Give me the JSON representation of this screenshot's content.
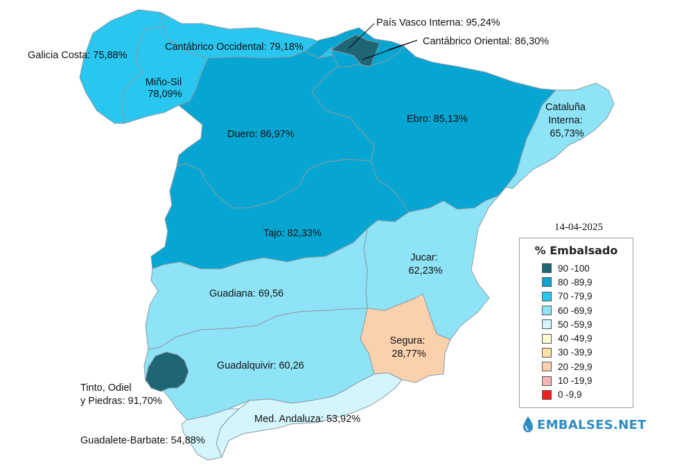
{
  "map": {
    "date": "14-04-2025",
    "basins": [
      {
        "key": "galicia",
        "label": "Galicia Costa: 75,88%",
        "value": 75.88,
        "color": "#29c6ef"
      },
      {
        "key": "cantabrico_occ",
        "label": "Cantábrico Occidental: 79,18%",
        "value": 79.18,
        "color": "#29c6ef"
      },
      {
        "key": "pais_vasco",
        "label": "País Vasco Interna: 95,24%",
        "value": 95.24,
        "color": "#1e6575"
      },
      {
        "key": "cantabrico_or",
        "label": "Cantábrico Oriental: 86,30%",
        "value": 86.3,
        "color": "#07a6d2"
      },
      {
        "key": "mino_sil",
        "label_lines": [
          "Miño-Sil",
          "78,09%"
        ],
        "value": 78.09,
        "color": "#29c6ef"
      },
      {
        "key": "duero",
        "label": "Duero: 86,97%",
        "value": 86.97,
        "color": "#07a6d2"
      },
      {
        "key": "ebro",
        "label": "Ebro: 85,13%",
        "value": 85.13,
        "color": "#07a6d2"
      },
      {
        "key": "cataluna",
        "label_lines": [
          "Cataluña",
          "Interna:",
          "65,73%"
        ],
        "value": 65.73,
        "color": "#8ee3f7"
      },
      {
        "key": "tajo",
        "label": "Tajo: 82,33%",
        "value": 82.33,
        "color": "#07a6d2"
      },
      {
        "key": "jucar",
        "label_lines": [
          "Jucar:",
          "62,23%"
        ],
        "value": 62.23,
        "color": "#8ee3f7"
      },
      {
        "key": "guadiana",
        "label": "Guadiana: 69,56",
        "value": 69.56,
        "color": "#8ee3f7"
      },
      {
        "key": "segura",
        "label_lines": [
          "Segura:",
          "28,77%"
        ],
        "value": 28.77,
        "color": "#fbd0ac"
      },
      {
        "key": "guadalquivir",
        "label": "Guadalquivir: 60,26",
        "value": 60.26,
        "color": "#8ee3f7"
      },
      {
        "key": "tinto",
        "label_lines": [
          "Tinto, Odiel",
          "y Piedras: 91,70%"
        ],
        "value": 91.7,
        "color": "#1e6575"
      },
      {
        "key": "med_andaluza",
        "label": "Med. Andaluza: 53,92%",
        "value": 53.92,
        "color": "#d4f5fc"
      },
      {
        "key": "guadalete",
        "label": "Guadalete-Barbate: 54,88%",
        "value": 54.88,
        "color": "#d4f5fc"
      }
    ]
  },
  "legend": {
    "title": "% Embalsado",
    "items": [
      {
        "label": "90 -100",
        "color": "#1e6575"
      },
      {
        "label": "80 -89,9",
        "color": "#07a6d2"
      },
      {
        "label": "70 -79,9",
        "color": "#29c6ef"
      },
      {
        "label": "60 -69,9",
        "color": "#8ee3f7"
      },
      {
        "label": "50 -59,9",
        "color": "#d4f5fc"
      },
      {
        "label": "40 -49,9",
        "color": "#fdfccf"
      },
      {
        "label": "30 -39,9",
        "color": "#fbe1a5"
      },
      {
        "label": "20 -29,9",
        "color": "#fbd0ac"
      },
      {
        "label": "10 -19,9",
        "color": "#f8b4b4"
      },
      {
        "label": "0 -9,9",
        "color": "#f21f1f"
      }
    ]
  },
  "brand": {
    "name": "EMBALSES.NET",
    "icon": "water-drop-icon",
    "color": "#2f8bc3"
  }
}
